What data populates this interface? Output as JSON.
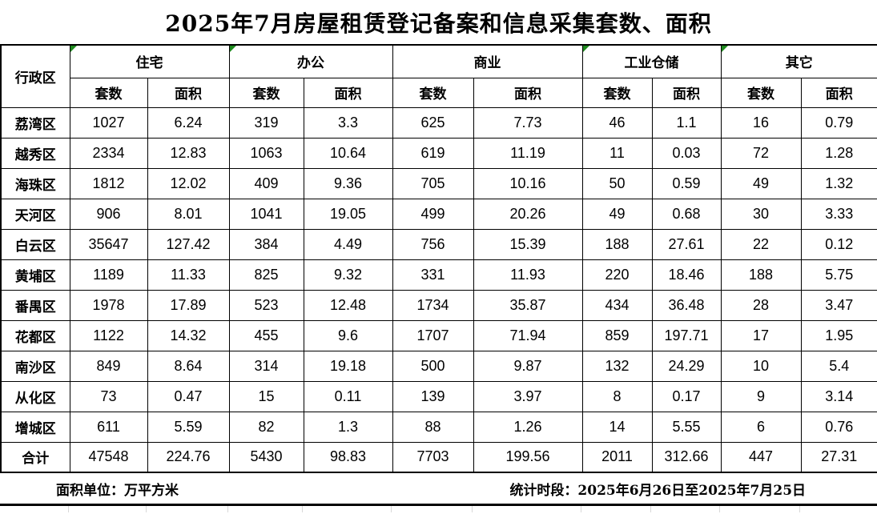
{
  "title": "2025年7月房屋租赁登记备案和信息采集套数、面积",
  "colors": {
    "flag_green": "#1f8b1f",
    "border": "#000000",
    "gridline": "#d8d8d8",
    "background": "#ffffff"
  },
  "table": {
    "corner_header": "行政区",
    "groups": [
      {
        "label": "住宅",
        "flag": true
      },
      {
        "label": "办公",
        "flag": true
      },
      {
        "label": "商业",
        "flag": false
      },
      {
        "label": "工业仓储",
        "flag": true
      },
      {
        "label": "其它",
        "flag": true
      }
    ],
    "sub_headers": [
      "套数",
      "面积"
    ],
    "rows": [
      {
        "district": "荔湾区",
        "values": [
          "1027",
          "6.24",
          "319",
          "3.3",
          "625",
          "7.73",
          "46",
          "1.1",
          "16",
          "0.79"
        ],
        "is_total": false
      },
      {
        "district": "越秀区",
        "values": [
          "2334",
          "12.83",
          "1063",
          "10.64",
          "619",
          "11.19",
          "11",
          "0.03",
          "72",
          "1.28"
        ],
        "is_total": false
      },
      {
        "district": "海珠区",
        "values": [
          "1812",
          "12.02",
          "409",
          "9.36",
          "705",
          "10.16",
          "50",
          "0.59",
          "49",
          "1.32"
        ],
        "is_total": false
      },
      {
        "district": "天河区",
        "values": [
          "906",
          "8.01",
          "1041",
          "19.05",
          "499",
          "20.26",
          "49",
          "0.68",
          "30",
          "3.33"
        ],
        "is_total": false
      },
      {
        "district": "白云区",
        "values": [
          "35647",
          "127.42",
          "384",
          "4.49",
          "756",
          "15.39",
          "188",
          "27.61",
          "22",
          "0.12"
        ],
        "is_total": false
      },
      {
        "district": "黄埔区",
        "values": [
          "1189",
          "11.33",
          "825",
          "9.32",
          "331",
          "11.93",
          "220",
          "18.46",
          "188",
          "5.75"
        ],
        "is_total": false
      },
      {
        "district": "番禺区",
        "values": [
          "1978",
          "17.89",
          "523",
          "12.48",
          "1734",
          "35.87",
          "434",
          "36.48",
          "28",
          "3.47"
        ],
        "is_total": false
      },
      {
        "district": "花都区",
        "values": [
          "1122",
          "14.32",
          "455",
          "9.6",
          "1707",
          "71.94",
          "859",
          "197.71",
          "17",
          "1.95"
        ],
        "is_total": false
      },
      {
        "district": "南沙区",
        "values": [
          "849",
          "8.64",
          "314",
          "19.18",
          "500",
          "9.87",
          "132",
          "24.29",
          "10",
          "5.4"
        ],
        "is_total": false
      },
      {
        "district": "从化区",
        "values": [
          "73",
          "0.47",
          "15",
          "0.11",
          "139",
          "3.97",
          "8",
          "0.17",
          "9",
          "3.14"
        ],
        "is_total": false
      },
      {
        "district": "增城区",
        "values": [
          "611",
          "5.59",
          "82",
          "1.3",
          "88",
          "1.26",
          "14",
          "5.55",
          "6",
          "0.76"
        ],
        "is_total": false
      },
      {
        "district": "合计",
        "values": [
          "47548",
          "224.76",
          "5430",
          "98.83",
          "7703",
          "199.56",
          "2011",
          "312.66",
          "447",
          "27.31"
        ],
        "is_total": true
      }
    ]
  },
  "footer": {
    "area_unit": "面积单位：万平方米",
    "period": "统计时段：2025年6月26日至2025年7月25日"
  }
}
